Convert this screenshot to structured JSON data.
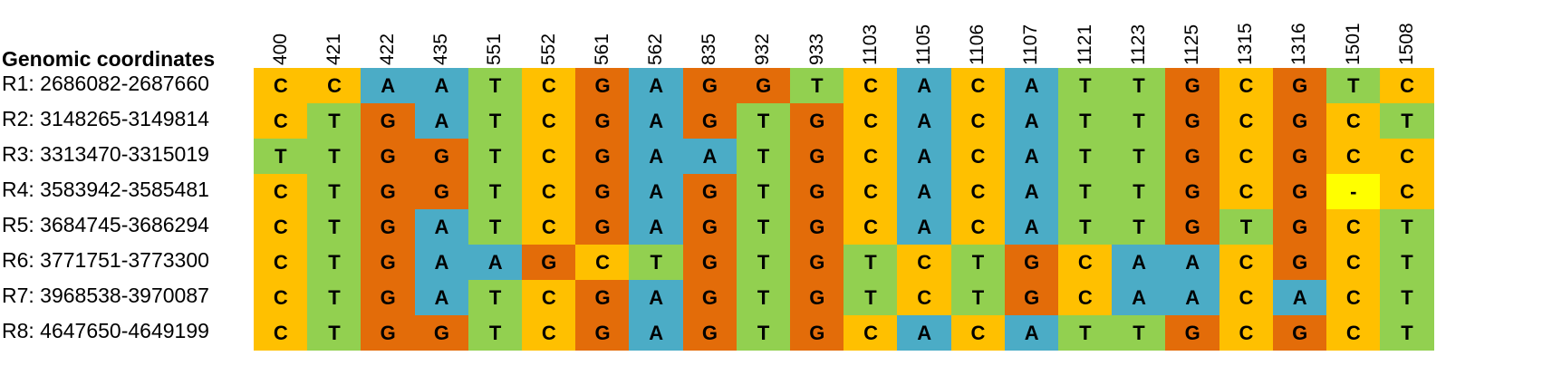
{
  "header": {
    "title": "Genomic coordinates"
  },
  "columns": [
    "400",
    "421",
    "422",
    "435",
    "551",
    "552",
    "561",
    "562",
    "835",
    "932",
    "933",
    "1103",
    "1105",
    "1106",
    "1107",
    "1121",
    "1123",
    "1125",
    "1315",
    "1316",
    "1501",
    "1508"
  ],
  "rows": [
    {
      "label": "R1: 2686082-2687660",
      "bases": [
        "C",
        "C",
        "A",
        "A",
        "T",
        "C",
        "G",
        "A",
        "G",
        "G",
        "T",
        "C",
        "A",
        "C",
        "A",
        "T",
        "T",
        "G",
        "C",
        "G",
        "T",
        "C"
      ]
    },
    {
      "label": "R2: 3148265-3149814",
      "bases": [
        "C",
        "T",
        "G",
        "A",
        "T",
        "C",
        "G",
        "A",
        "G",
        "T",
        "G",
        "C",
        "A",
        "C",
        "A",
        "T",
        "T",
        "G",
        "C",
        "G",
        "C",
        "T"
      ]
    },
    {
      "label": "R3: 3313470-3315019",
      "bases": [
        "T",
        "T",
        "G",
        "G",
        "T",
        "C",
        "G",
        "A",
        "A",
        "T",
        "G",
        "C",
        "A",
        "C",
        "A",
        "T",
        "T",
        "G",
        "C",
        "G",
        "C",
        "C"
      ]
    },
    {
      "label": "R4: 3583942-3585481",
      "bases": [
        "C",
        "T",
        "G",
        "G",
        "T",
        "C",
        "G",
        "A",
        "G",
        "T",
        "G",
        "C",
        "A",
        "C",
        "A",
        "T",
        "T",
        "G",
        "C",
        "G",
        "-",
        "C"
      ]
    },
    {
      "label": "R5: 3684745-3686294",
      "bases": [
        "C",
        "T",
        "G",
        "A",
        "T",
        "C",
        "G",
        "A",
        "G",
        "T",
        "G",
        "C",
        "A",
        "C",
        "A",
        "T",
        "T",
        "G",
        "T",
        "G",
        "C",
        "T"
      ]
    },
    {
      "label": "R6: 3771751-3773300",
      "bases": [
        "C",
        "T",
        "G",
        "A",
        "A",
        "G",
        "C",
        "T",
        "G",
        "T",
        "G",
        "T",
        "C",
        "T",
        "G",
        "C",
        "A",
        "A",
        "C",
        "G",
        "C",
        "T"
      ]
    },
    {
      "label": "R7: 3968538-3970087",
      "bases": [
        "C",
        "T",
        "G",
        "A",
        "T",
        "C",
        "G",
        "A",
        "G",
        "T",
        "G",
        "T",
        "C",
        "T",
        "G",
        "C",
        "A",
        "A",
        "C",
        "A",
        "C",
        "T"
      ]
    },
    {
      "label": "R8: 4647650-4649199",
      "bases": [
        "C",
        "T",
        "G",
        "G",
        "T",
        "C",
        "G",
        "A",
        "G",
        "T",
        "G",
        "C",
        "A",
        "C",
        "A",
        "T",
        "T",
        "G",
        "C",
        "G",
        "C",
        "T"
      ]
    }
  ],
  "colors": {
    "A": "#4bacc6",
    "C": "#ffc000",
    "G": "#e36c09",
    "T": "#92d050",
    "-": "#ffff00"
  }
}
